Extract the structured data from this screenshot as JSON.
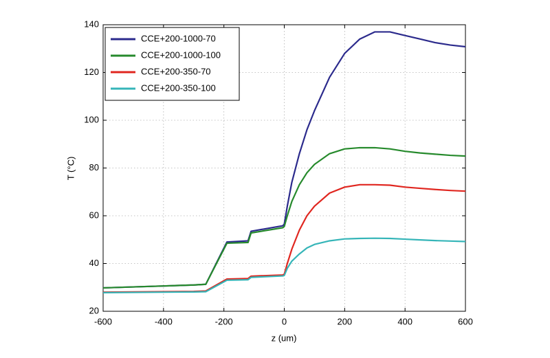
{
  "chart_data": {
    "type": "line",
    "x_label": "z (um)",
    "y_label": "T (°C)",
    "x": [
      -600,
      -500,
      -400,
      -300,
      -260,
      -190,
      -120,
      -110,
      -5,
      0,
      10,
      25,
      50,
      75,
      100,
      150,
      200,
      250,
      300,
      350,
      400,
      450,
      500,
      550,
      600
    ],
    "series": [
      {
        "name": "CCE+200-1000-70",
        "color": "#2b2a8c",
        "values": [
          29.8,
          30.2,
          30.6,
          31.0,
          31.3,
          49.0,
          49.5,
          53.5,
          55.8,
          56.5,
          64,
          74,
          86,
          96,
          104,
          118,
          128,
          134,
          137,
          137,
          135.5,
          134,
          132.5,
          131.5,
          130.8
        ]
      },
      {
        "name": "CCE+200-1000-100",
        "color": "#268a2c",
        "values": [
          29.8,
          30.2,
          30.6,
          31.0,
          31.3,
          48.5,
          48.8,
          52.8,
          55,
          55.5,
          60,
          66,
          73,
          78,
          81.5,
          86,
          88,
          88.5,
          88.5,
          88,
          87,
          86.3,
          85.8,
          85.3,
          85
        ]
      },
      {
        "name": "CCE+200-350-70",
        "color": "#e0261f",
        "values": [
          28,
          28.1,
          28.2,
          28.3,
          28.5,
          33.5,
          33.7,
          34.7,
          35.2,
          35.5,
          40,
          46,
          54,
          60,
          64,
          69.5,
          72,
          73,
          73,
          72.8,
          72,
          71.5,
          71,
          70.6,
          70.3
        ]
      },
      {
        "name": "CCE+200-350-100",
        "color": "#35b5b8",
        "values": [
          27.8,
          27.9,
          28,
          28.1,
          28.2,
          33,
          33.2,
          34.2,
          34.8,
          35,
          38,
          41,
          44,
          46.5,
          48,
          49.5,
          50.3,
          50.5,
          50.6,
          50.5,
          50.2,
          49.9,
          49.6,
          49.4,
          49.2
        ]
      }
    ],
    "xlim": [
      -600,
      600
    ],
    "ylim": [
      20,
      140
    ],
    "xticks": [
      -600,
      -400,
      -200,
      0,
      200,
      400,
      600
    ],
    "yticks": [
      20,
      40,
      60,
      80,
      100,
      120,
      140
    ],
    "grid": true,
    "legend": "northwest"
  }
}
